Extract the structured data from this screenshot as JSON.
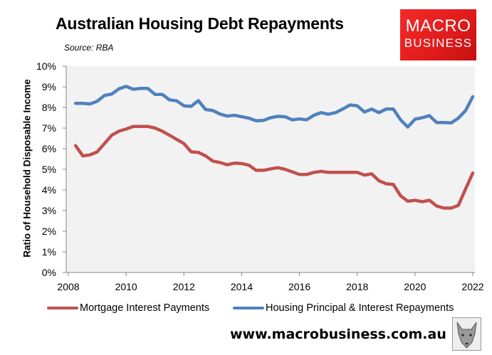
{
  "header": {
    "title": "Australian Housing Debt Repayments",
    "source": "Source: RBA"
  },
  "logo": {
    "line1": "MACRO",
    "line2": "BUSINESS",
    "color": "#e41e1e"
  },
  "footer": {
    "url": "www.macrobusiness.com.au",
    "icon": "wolf-icon"
  },
  "chart_data": {
    "type": "line",
    "title": "Australian Housing Debt Repayments",
    "subtitle": "Source: RBA",
    "xlabel": "",
    "ylabel": "Ratio of Household Disposable Income",
    "xlim": [
      2008,
      2022
    ],
    "ylim": [
      0,
      10
    ],
    "x_ticks": [
      "2008",
      "2010",
      "2012",
      "2014",
      "2016",
      "2018",
      "2020",
      "2022"
    ],
    "y_ticks": [
      "0%",
      "1%",
      "2%",
      "3%",
      "4%",
      "5%",
      "6%",
      "7%",
      "8%",
      "9%",
      "10%"
    ],
    "grid": false,
    "plot_background": "#f2f2f2",
    "legend_position": "bottom",
    "x": [
      2008.25,
      2008.5,
      2008.75,
      2009.0,
      2009.25,
      2009.5,
      2009.75,
      2010.0,
      2010.25,
      2010.5,
      2010.75,
      2011.0,
      2011.25,
      2011.5,
      2011.75,
      2012.0,
      2012.25,
      2012.5,
      2012.75,
      2013.0,
      2013.25,
      2013.5,
      2013.75,
      2014.0,
      2014.25,
      2014.5,
      2014.75,
      2015.0,
      2015.25,
      2015.5,
      2015.75,
      2016.0,
      2016.25,
      2016.5,
      2016.75,
      2017.0,
      2017.25,
      2017.5,
      2017.75,
      2018.0,
      2018.25,
      2018.5,
      2018.75,
      2019.0,
      2019.25,
      2019.5,
      2019.75,
      2020.0,
      2020.25,
      2020.5,
      2020.75,
      2021.0,
      2021.25,
      2021.5,
      2021.75,
      2022.0
    ],
    "series": [
      {
        "name": "Mortgage Interest Payments",
        "color": "#c0504d",
        "values": [
          6.15,
          5.65,
          5.7,
          5.85,
          6.25,
          6.65,
          6.85,
          6.95,
          7.08,
          7.08,
          7.08,
          7.0,
          6.85,
          6.65,
          6.45,
          6.25,
          5.85,
          5.82,
          5.65,
          5.4,
          5.33,
          5.22,
          5.3,
          5.28,
          5.2,
          4.95,
          4.95,
          5.02,
          5.08,
          5.0,
          4.88,
          4.75,
          4.75,
          4.85,
          4.9,
          4.85,
          4.85,
          4.85,
          4.85,
          4.85,
          4.72,
          4.78,
          4.45,
          4.3,
          4.27,
          3.72,
          3.45,
          3.5,
          3.43,
          3.5,
          3.22,
          3.12,
          3.12,
          3.25,
          4.05,
          4.82
        ]
      },
      {
        "name": "Housing Principal & Interest Repayments",
        "color": "#4f81bd",
        "values": [
          8.2,
          8.2,
          8.17,
          8.3,
          8.58,
          8.65,
          8.9,
          9.02,
          8.88,
          8.92,
          8.92,
          8.63,
          8.63,
          8.37,
          8.32,
          8.08,
          8.05,
          8.33,
          7.9,
          7.85,
          7.68,
          7.58,
          7.62,
          7.55,
          7.48,
          7.35,
          7.37,
          7.5,
          7.57,
          7.55,
          7.4,
          7.44,
          7.4,
          7.62,
          7.75,
          7.67,
          7.75,
          7.92,
          8.12,
          8.08,
          7.78,
          7.92,
          7.75,
          7.92,
          7.92,
          7.4,
          7.05,
          7.43,
          7.5,
          7.6,
          7.27,
          7.27,
          7.25,
          7.48,
          7.85,
          8.52
        ]
      }
    ]
  },
  "legend": {
    "items": [
      {
        "label": "Mortgage Interest Payments",
        "color": "#c0504d"
      },
      {
        "label": "Housing Principal & Interest Repayments",
        "color": "#4f81bd"
      }
    ]
  }
}
